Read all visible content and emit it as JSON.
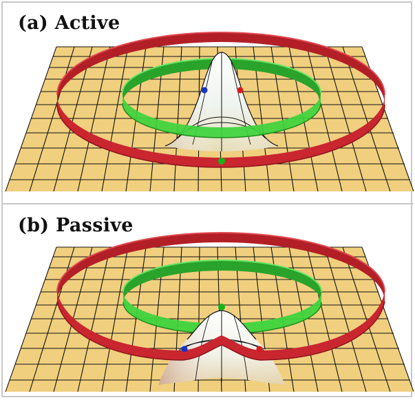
{
  "panels": [
    {
      "id": "a",
      "title": "(a) Active"
    },
    {
      "id": "b",
      "title": "(b) Passive"
    }
  ],
  "colors": {
    "ground": "#f0cf7e",
    "grid": "#111111",
    "outer_ring": "#c0232b",
    "inner_ring": "#34cf34",
    "surface_peak": "#fbfdfc",
    "surface_base": "#e2d2a8",
    "ball_blue": "#1533c8",
    "ball_red": "#d81a1a",
    "ball_green": "#16b316"
  }
}
